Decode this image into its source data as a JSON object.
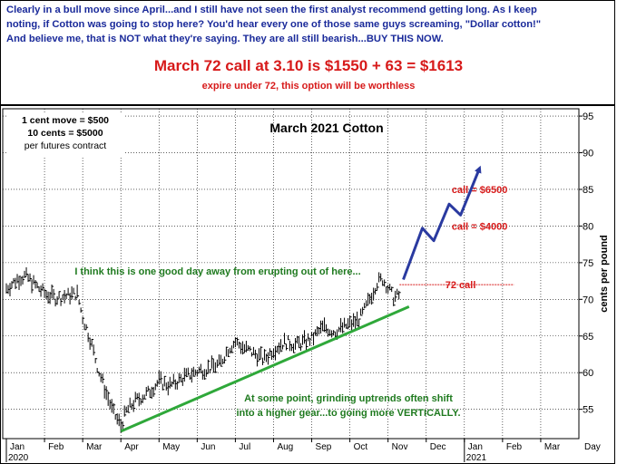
{
  "header": {
    "lines": [
      "Clearly in a bull move since April...and I still have not seen the first analyst recommend getting long. As I keep",
      "noting, if Cotton was going to stop here? You'd hear every one of those same guys screaming, \"Dollar cotton!\"",
      "And believe me, that is NOT what they're saying. They are all still bearish...BUY THIS NOW."
    ],
    "offer": "March 72 call at 3.10 is $1550 + 63 = $1613",
    "offer_sub": "expire under 72, this option will be worthless"
  },
  "colors": {
    "header_text": "#1a2a9a",
    "offer_text": "#d71a1a",
    "price_bars": "#000000",
    "trendline": "#2fa83a",
    "annotation_green": "#1f7a1f",
    "projection": "#2a3aa0",
    "call_label": "#d71a1a"
  },
  "chart_data": {
    "type": "bar",
    "title": "March 2021 Cotton",
    "ylabel": "cents per pound",
    "ylim": [
      51,
      96
    ],
    "yticks": [
      55,
      60,
      65,
      70,
      75,
      80,
      85,
      90,
      95
    ],
    "x_tick_labels": [
      "Jan",
      "Feb",
      "Mar",
      "Apr",
      "May",
      "Jun",
      "Jul",
      "Aug",
      "Sep",
      "Oct",
      "Nov",
      "Dec",
      "Jan",
      "Feb",
      "Mar"
    ],
    "x_year_labels": [
      {
        "at": "Jan",
        "text": "2020"
      },
      {
        "at": "Jan ",
        "text": "2021"
      }
    ],
    "x_extra_label": "Day",
    "grid": true,
    "info_box": [
      "1 cent move = $500",
      "10 cents = $5000",
      "per futures contract"
    ],
    "price_path": [
      {
        "month": 0.0,
        "price": 71.5
      },
      {
        "month": 0.3,
        "price": 72.8
      },
      {
        "month": 0.5,
        "price": 73.2
      },
      {
        "month": 0.7,
        "price": 72.2
      },
      {
        "month": 1.0,
        "price": 70.8
      },
      {
        "month": 1.3,
        "price": 70.2
      },
      {
        "month": 1.6,
        "price": 70.5
      },
      {
        "month": 1.85,
        "price": 70.8
      },
      {
        "month": 2.0,
        "price": 67.5
      },
      {
        "month": 2.2,
        "price": 64.5
      },
      {
        "month": 2.4,
        "price": 60.5
      },
      {
        "month": 2.6,
        "price": 57.5
      },
      {
        "month": 2.8,
        "price": 54.5
      },
      {
        "month": 3.0,
        "price": 52.8
      },
      {
        "month": 3.15,
        "price": 54.8
      },
      {
        "month": 3.4,
        "price": 56.2
      },
      {
        "month": 3.7,
        "price": 57.2
      },
      {
        "month": 4.0,
        "price": 58.8
      },
      {
        "month": 4.3,
        "price": 58.2
      },
      {
        "month": 4.6,
        "price": 59.2
      },
      {
        "month": 5.0,
        "price": 60.2
      },
      {
        "month": 5.3,
        "price": 60.6
      },
      {
        "month": 5.6,
        "price": 61.2
      },
      {
        "month": 5.8,
        "price": 63.2
      },
      {
        "month": 6.0,
        "price": 64.2
      },
      {
        "month": 6.2,
        "price": 63.4
      },
      {
        "month": 6.5,
        "price": 62.6
      },
      {
        "month": 6.75,
        "price": 61.8
      },
      {
        "month": 7.0,
        "price": 63.2
      },
      {
        "month": 7.3,
        "price": 64.2
      },
      {
        "month": 7.6,
        "price": 63.8
      },
      {
        "month": 8.0,
        "price": 64.6
      },
      {
        "month": 8.3,
        "price": 66.2
      },
      {
        "month": 8.6,
        "price": 65.6
      },
      {
        "month": 9.0,
        "price": 66.6
      },
      {
        "month": 9.25,
        "price": 67.2
      },
      {
        "month": 9.5,
        "price": 69.8
      },
      {
        "month": 9.7,
        "price": 72.2
      },
      {
        "month": 9.85,
        "price": 72.8
      },
      {
        "month": 10.0,
        "price": 71.6
      },
      {
        "month": 10.15,
        "price": 70.2
      },
      {
        "month": 10.3,
        "price": 70.6
      }
    ],
    "trendline": {
      "start": {
        "month": 3.0,
        "price": 52.0
      },
      "end": {
        "month": 10.55,
        "price": 69.0
      }
    },
    "projection": [
      {
        "month": 10.4,
        "price": 72.7
      },
      {
        "month": 10.9,
        "price": 79.7
      },
      {
        "month": 11.2,
        "price": 78.0
      },
      {
        "month": 11.6,
        "price": 83.0
      },
      {
        "month": 11.9,
        "price": 81.5
      },
      {
        "month": 12.4,
        "price": 87.9
      }
    ],
    "reference_lines": [
      {
        "label": "72 call",
        "price": 72.0
      }
    ],
    "price_labels": [
      {
        "label": "call = $6500",
        "price": 85.0
      },
      {
        "label": "call = $4000",
        "price": 80.0
      }
    ],
    "annotations": [
      "I think this is one good day away from erupting out of here...",
      "At some point, grinding uptrends often shift",
      "into a higher gear...to going more VERTICALLY."
    ]
  }
}
